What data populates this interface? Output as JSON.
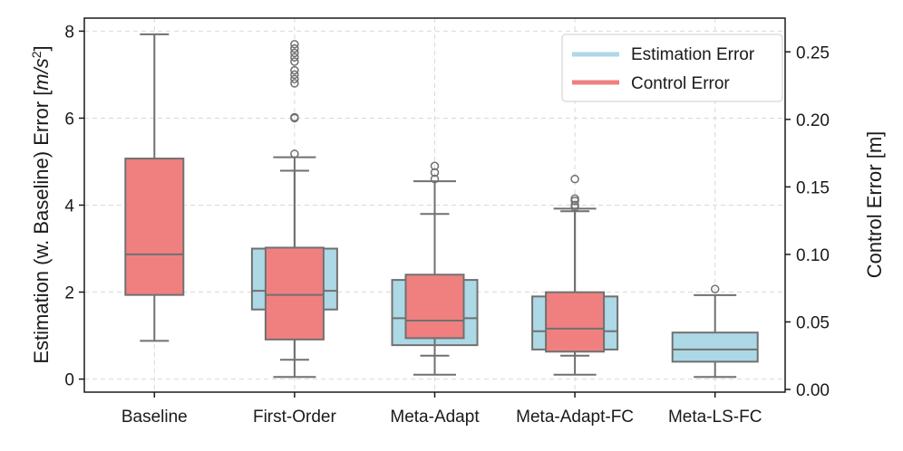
{
  "chart_data": {
    "type": "box",
    "categories": [
      "Baseline",
      "First-Order",
      "Meta-Adapt",
      "Meta-Adapt-FC",
      "Meta-LS-FC"
    ],
    "ylabel_left_prefix": "Estimation (w. Baseline) Error [",
    "ylabel_left_unit": "m/s",
    "ylabel_left_sup": "2",
    "ylabel_left_suffix": "]",
    "ylabel_right": "Control Error [m]",
    "ylim_left": [
      -0.3,
      8.3
    ],
    "ylim_right": [
      -0.002,
      0.275
    ],
    "yticks_left": [
      "0",
      "2",
      "4",
      "6",
      "8"
    ],
    "yticks_right": [
      "0.00",
      "0.05",
      "0.10",
      "0.15",
      "0.20",
      "0.25"
    ],
    "grid": true,
    "legend_position": "top-right",
    "colors": {
      "estimation": "#add8e6",
      "control": "#f08080",
      "lines": "#707070"
    },
    "series": [
      {
        "name": "Estimation Error",
        "axis": "left",
        "boxes": [
          null,
          {
            "whisker_low": 0.05,
            "q1": 1.6,
            "median": 2.03,
            "q3": 3.0,
            "whisker_high": 5.1,
            "outliers": [
              5.18,
              6.0,
              6.02,
              6.8,
              6.9,
              7.0,
              7.1,
              7.3,
              7.4,
              7.5,
              7.6,
              7.7
            ]
          },
          {
            "whisker_low": 0.1,
            "q1": 0.78,
            "median": 1.4,
            "q3": 2.28,
            "whisker_high": 4.55,
            "outliers": [
              4.6,
              4.75,
              4.9
            ]
          },
          {
            "whisker_low": 0.1,
            "q1": 0.68,
            "median": 1.1,
            "q3": 1.9,
            "whisker_high": 3.92,
            "outliers": [
              3.95,
              4.0,
              4.1,
              4.15,
              4.6
            ]
          },
          {
            "whisker_low": 0.05,
            "q1": 0.4,
            "median": 0.68,
            "q3": 1.07,
            "whisker_high": 1.93,
            "outliers": [
              2.07
            ]
          }
        ]
      },
      {
        "name": "Control Error",
        "axis": "right",
        "boxes": [
          {
            "whisker_low": 0.036,
            "q1": 0.07,
            "median": 0.1,
            "q3": 0.171,
            "whisker_high": 0.263,
            "outliers": []
          },
          {
            "whisker_low": 0.022,
            "q1": 0.037,
            "median": 0.07,
            "q3": 0.105,
            "whisker_high": 0.162,
            "outliers": []
          },
          {
            "whisker_low": 0.025,
            "q1": 0.038,
            "median": 0.051,
            "q3": 0.085,
            "whisker_high": 0.13,
            "outliers": []
          },
          {
            "whisker_low": 0.025,
            "q1": 0.028,
            "median": 0.045,
            "q3": 0.072,
            "whisker_high": 0.132,
            "outliers": []
          },
          null
        ]
      }
    ]
  }
}
